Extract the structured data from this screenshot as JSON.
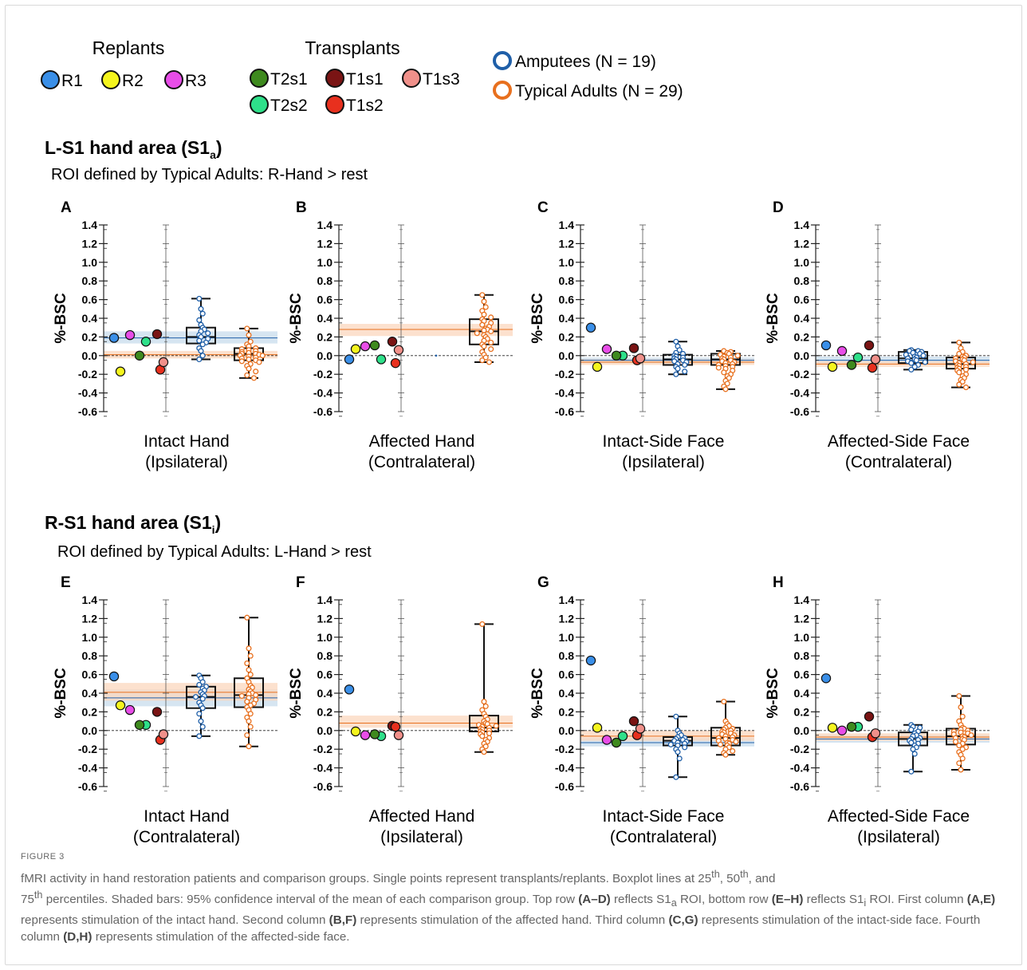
{
  "legend": {
    "replants_title": "Replants",
    "transplants_title": "Transplants",
    "replants": [
      {
        "label": "R1",
        "color": "#3a8fe8"
      },
      {
        "label": "R2",
        "color": "#f5f51e"
      },
      {
        "label": "R3",
        "color": "#e84de8"
      }
    ],
    "transplants": [
      {
        "label": "T2s1",
        "color": "#3e8a1e"
      },
      {
        "label": "T1s1",
        "color": "#7a1414"
      },
      {
        "label": "T1s3",
        "color": "#f0908a"
      },
      {
        "label": "T2s2",
        "color": "#2ee08a"
      },
      {
        "label": "T1s2",
        "color": "#e8301e"
      }
    ],
    "groups": [
      {
        "label": "Amputees (N = 19)",
        "color": "#1f5fa8"
      },
      {
        "label": "Typical Adults (N = 29)",
        "color": "#e8701e"
      }
    ]
  },
  "rows": [
    {
      "title": "L-S1 hand area (S1",
      "sub": "a",
      "close": ")",
      "roi": "ROI defined by Typical Adults: R-Hand > rest"
    },
    {
      "title": "R-S1 hand area (S1",
      "sub": "i",
      "close": ")",
      "roi": "ROI defined by Typical Adults: L-Hand > rest"
    }
  ],
  "ylabel": "%-BSC",
  "yticks": [
    "1.4",
    "1.2",
    "1.0",
    "0.8",
    "0.6",
    "0.4",
    "0.2",
    "0.0",
    "-0.2",
    "-0.4",
    "-0.6"
  ],
  "caption": {
    "label": "FIGURE 3",
    "p1": "fMRI activity in hand restoration patients and comparison groups. Single points represent transplants/replants. Boxplot lines at 25",
    "p2": "th",
    "p3": ", 50",
    "p4": "th",
    "p5": ", and",
    "p6": "75",
    "p7": "th",
    "p8": " percentiles. Shaded bars: 95% confidence interval of the mean of each comparison group. Top row ",
    "b1": "(A–D)",
    "p9": " reflects S1",
    "p10": "a",
    "p11": " ROI, bottom row ",
    "b2": "(E–H)",
    "p12": " reflects S1",
    "p13": "i",
    "p14": " ROI. First column ",
    "b3": "(A,E)",
    "p15": " represents stimulation of the intact hand. Second column ",
    "b4": "(B,F)",
    "p16": " represents stimulation of the affected hand. Third column ",
    "b5": "(C,G)",
    "p17": " represents stimulation of the intact-side face. Fourth column ",
    "b6": "(D,H)",
    "p18": " represents stimulation of the affected-side face."
  },
  "chart_data": [
    {
      "type": "scatter",
      "panel": "A",
      "xlabel": [
        "Intact Hand",
        "(Ipsilateral)"
      ],
      "ylabel": "%-BSC",
      "ylim": [
        -0.6,
        1.4
      ],
      "patients": {
        "R1": 0.19,
        "R2": -0.17,
        "R3": 0.22,
        "T2s1": 0.0,
        "T2s2": 0.15,
        "T1s1": 0.23,
        "T1s2": -0.15,
        "T1s3": -0.07
      },
      "amputees": {
        "mean": 0.19,
        "ci": [
          0.13,
          0.26
        ],
        "box": [
          -0.04,
          0.13,
          0.2,
          0.3,
          0.61
        ],
        "points": [
          0.61,
          0.5,
          0.45,
          0.38,
          0.33,
          0.3,
          0.28,
          0.26,
          0.24,
          0.22,
          0.2,
          0.18,
          0.16,
          0.14,
          0.12,
          0.08,
          0.05,
          0.0,
          -0.04
        ]
      },
      "typical": {
        "mean": 0.01,
        "ci": [
          -0.03,
          0.05
        ],
        "box": [
          -0.24,
          -0.05,
          0.02,
          0.08,
          0.29
        ],
        "points": [
          0.29,
          0.22,
          0.15,
          0.12,
          0.1,
          0.08,
          0.07,
          0.06,
          0.05,
          0.04,
          0.03,
          0.02,
          0.02,
          0.01,
          0.0,
          0.0,
          -0.01,
          -0.02,
          -0.03,
          -0.04,
          -0.05,
          -0.06,
          -0.07,
          -0.09,
          -0.11,
          -0.14,
          -0.17,
          -0.21,
          -0.24
        ]
      }
    },
    {
      "type": "scatter",
      "panel": "B",
      "xlabel": [
        "Affected Hand",
        "(Contralateral)"
      ],
      "ylabel": "%-BSC",
      "ylim": [
        -0.6,
        1.4
      ],
      "patients": {
        "R1": -0.04,
        "R2": 0.07,
        "R3": 0.1,
        "T2s1": 0.11,
        "T2s2": -0.04,
        "T1s1": 0.15,
        "T1s2": -0.08,
        "T1s3": 0.06
      },
      "amputees": {
        "point": 0.0
      },
      "typical": {
        "mean": 0.28,
        "ci": [
          0.21,
          0.34
        ],
        "box": [
          -0.07,
          0.12,
          0.26,
          0.39,
          0.65
        ],
        "points": [
          0.65,
          0.58,
          0.52,
          0.48,
          0.44,
          0.41,
          0.39,
          0.37,
          0.35,
          0.33,
          0.31,
          0.29,
          0.28,
          0.27,
          0.26,
          0.24,
          0.22,
          0.2,
          0.18,
          0.16,
          0.14,
          0.12,
          0.1,
          0.07,
          0.04,
          0.01,
          -0.02,
          -0.05,
          -0.07
        ]
      }
    },
    {
      "type": "scatter",
      "panel": "C",
      "xlabel": [
        "Intact-Side Face",
        "(Ipsilateral)"
      ],
      "ylabel": "%-BSC",
      "ylim": [
        -0.6,
        1.4
      ],
      "patients": {
        "R1": 0.3,
        "R2": -0.12,
        "R3": 0.07,
        "T2s1": 0.0,
        "T2s2": 0.0,
        "T1s1": 0.08,
        "T1s2": -0.05,
        "T1s3": -0.03
      },
      "amputees": {
        "mean": -0.05,
        "ci": [
          -0.08,
          -0.02
        ],
        "box": [
          -0.2,
          -0.1,
          -0.04,
          0.01,
          0.15
        ],
        "points": [
          0.15,
          0.1,
          0.06,
          0.03,
          0.02,
          0.0,
          -0.01,
          -0.02,
          -0.03,
          -0.04,
          -0.05,
          -0.06,
          -0.07,
          -0.09,
          -0.1,
          -0.12,
          -0.14,
          -0.17,
          -0.2
        ]
      },
      "typical": {
        "mean": -0.07,
        "ci": [
          -0.1,
          -0.04
        ],
        "box": [
          -0.36,
          -0.1,
          -0.04,
          0.02,
          0.05
        ],
        "points": [
          0.05,
          0.04,
          0.03,
          0.02,
          0.01,
          0.0,
          -0.01,
          -0.02,
          -0.03,
          -0.04,
          -0.05,
          -0.06,
          -0.07,
          -0.08,
          -0.09,
          -0.1,
          -0.11,
          -0.12,
          -0.13,
          -0.14,
          -0.16,
          -0.18,
          -0.2,
          -0.22,
          -0.24,
          -0.27,
          -0.3,
          -0.33,
          -0.36
        ]
      }
    },
    {
      "type": "scatter",
      "panel": "D",
      "xlabel": [
        "Affected-Side Face",
        "(Contralateral)"
      ],
      "ylabel": "%-BSC",
      "ylim": [
        -0.6,
        1.4
      ],
      "patients": {
        "R1": 0.11,
        "R2": -0.12,
        "R3": 0.05,
        "T2s1": -0.1,
        "T2s2": -0.02,
        "T1s1": 0.11,
        "T1s2": -0.13,
        "T1s3": -0.04
      },
      "amputees": {
        "mean": -0.05,
        "ci": [
          -0.08,
          -0.01
        ],
        "box": [
          -0.15,
          -0.08,
          -0.03,
          0.04,
          0.06
        ],
        "points": [
          0.06,
          0.05,
          0.05,
          0.04,
          0.03,
          0.02,
          0.01,
          0.0,
          -0.01,
          -0.02,
          -0.03,
          -0.04,
          -0.05,
          -0.06,
          -0.07,
          -0.08,
          -0.1,
          -0.12,
          -0.15
        ]
      },
      "typical": {
        "mean": -0.09,
        "ci": [
          -0.12,
          -0.06
        ],
        "box": [
          -0.34,
          -0.14,
          -0.09,
          -0.02,
          0.14
        ],
        "points": [
          0.14,
          0.08,
          0.04,
          0.02,
          0.0,
          -0.01,
          -0.02,
          -0.03,
          -0.04,
          -0.05,
          -0.06,
          -0.07,
          -0.08,
          -0.09,
          -0.1,
          -0.11,
          -0.12,
          -0.13,
          -0.14,
          -0.15,
          -0.16,
          -0.18,
          -0.2,
          -0.22,
          -0.24,
          -0.26,
          -0.28,
          -0.31,
          -0.34
        ]
      }
    },
    {
      "type": "scatter",
      "panel": "E",
      "xlabel": [
        "Intact Hand",
        "(Contralateral)"
      ],
      "ylabel": "%-BSC",
      "ylim": [
        -0.6,
        1.4
      ],
      "patients": {
        "R1": 0.58,
        "R2": 0.27,
        "R3": 0.22,
        "T2s1": 0.06,
        "T2s2": 0.06,
        "T1s1": 0.2,
        "T1s2": -0.1,
        "T1s3": -0.04
      },
      "amputees": {
        "mean": 0.35,
        "ci": [
          0.26,
          0.44
        ],
        "box": [
          -0.06,
          0.24,
          0.36,
          0.47,
          0.59
        ],
        "points": [
          0.59,
          0.56,
          0.52,
          0.49,
          0.47,
          0.45,
          0.43,
          0.41,
          0.39,
          0.37,
          0.36,
          0.34,
          0.3,
          0.27,
          0.24,
          0.18,
          0.1,
          0.04,
          -0.06
        ]
      },
      "typical": {
        "mean": 0.41,
        "ci": [
          0.32,
          0.51
        ],
        "box": [
          -0.17,
          0.25,
          0.38,
          0.56,
          1.21
        ],
        "points": [
          1.21,
          0.88,
          0.8,
          0.72,
          0.65,
          0.6,
          0.56,
          0.52,
          0.48,
          0.46,
          0.44,
          0.42,
          0.4,
          0.39,
          0.38,
          0.37,
          0.35,
          0.33,
          0.31,
          0.29,
          0.27,
          0.25,
          0.22,
          0.18,
          0.14,
          0.1,
          0.04,
          -0.05,
          -0.17
        ]
      }
    },
    {
      "type": "scatter",
      "panel": "F",
      "xlabel": [
        "Affected Hand",
        "(Ipsilateral)"
      ],
      "ylabel": "%-BSC",
      "ylim": [
        -0.6,
        1.4
      ],
      "patients": {
        "R1": 0.44,
        "R2": -0.01,
        "R3": -0.05,
        "T2s1": -0.04,
        "T2s2": -0.06,
        "T1s1": 0.05,
        "T1s2": 0.04,
        "T1s3": -0.05
      },
      "typical": {
        "mean": 0.08,
        "ci": [
          0.03,
          0.16
        ],
        "box": [
          -0.23,
          -0.01,
          0.03,
          0.16,
          1.14
        ],
        "points": [
          1.14,
          0.31,
          0.26,
          0.22,
          0.18,
          0.15,
          0.12,
          0.1,
          0.08,
          0.07,
          0.06,
          0.05,
          0.04,
          0.03,
          0.02,
          0.01,
          0.0,
          -0.01,
          -0.02,
          -0.03,
          -0.04,
          -0.06,
          -0.08,
          -0.1,
          -0.12,
          -0.14,
          -0.17,
          -0.2,
          -0.23
        ]
      }
    },
    {
      "type": "scatter",
      "panel": "G",
      "xlabel": [
        "Intact-Side Face",
        "(Contralateral)"
      ],
      "ylabel": "%-BSC",
      "ylim": [
        -0.6,
        1.4
      ],
      "patients": {
        "R1": 0.75,
        "R2": 0.03,
        "R3": -0.1,
        "T2s1": -0.13,
        "T2s2": -0.06,
        "T1s1": 0.1,
        "T1s2": -0.05,
        "T1s3": 0.02
      },
      "amputees": {
        "mean": -0.13,
        "ci": [
          -0.17,
          -0.08
        ],
        "box": [
          -0.5,
          -0.16,
          -0.11,
          -0.07,
          0.15
        ],
        "points": [
          0.15,
          0.0,
          -0.03,
          -0.05,
          -0.07,
          -0.08,
          -0.09,
          -0.1,
          -0.11,
          -0.12,
          -0.13,
          -0.14,
          -0.15,
          -0.16,
          -0.18,
          -0.2,
          -0.23,
          -0.3,
          -0.5
        ]
      },
      "typical": {
        "mean": -0.06,
        "ci": [
          -0.11,
          0.0
        ],
        "box": [
          -0.26,
          -0.16,
          -0.08,
          0.03,
          0.31
        ],
        "points": [
          0.31,
          0.1,
          0.07,
          0.05,
          0.03,
          0.02,
          0.01,
          0.0,
          -0.01,
          -0.02,
          -0.03,
          -0.04,
          -0.05,
          -0.06,
          -0.07,
          -0.08,
          -0.09,
          -0.1,
          -0.11,
          -0.12,
          -0.13,
          -0.14,
          -0.15,
          -0.16,
          -0.18,
          -0.2,
          -0.22,
          -0.24,
          -0.26
        ]
      }
    },
    {
      "type": "scatter",
      "panel": "H",
      "xlabel": [
        "Affected-Side Face",
        "(Ipsilateral)"
      ],
      "ylabel": "%-BSC",
      "ylim": [
        -0.6,
        1.4
      ],
      "patients": {
        "R1": 0.56,
        "R2": 0.03,
        "R3": 0.0,
        "T2s1": 0.04,
        "T2s2": 0.04,
        "T1s1": 0.15,
        "T1s2": -0.07,
        "T1s3": -0.03
      },
      "amputees": {
        "mean": -0.09,
        "ci": [
          -0.13,
          -0.05
        ],
        "box": [
          -0.44,
          -0.16,
          -0.09,
          -0.02,
          0.06
        ],
        "points": [
          0.06,
          0.04,
          0.03,
          0.01,
          -0.01,
          -0.03,
          -0.05,
          -0.06,
          -0.08,
          -0.09,
          -0.1,
          -0.11,
          -0.13,
          -0.14,
          -0.16,
          -0.18,
          -0.2,
          -0.25,
          -0.44
        ]
      },
      "typical": {
        "mean": -0.07,
        "ci": [
          -0.11,
          -0.03
        ],
        "box": [
          -0.42,
          -0.15,
          -0.06,
          0.02,
          0.37
        ],
        "points": [
          0.37,
          0.25,
          0.15,
          0.1,
          0.06,
          0.03,
          0.02,
          0.01,
          0.0,
          -0.01,
          -0.02,
          -0.03,
          -0.04,
          -0.05,
          -0.06,
          -0.07,
          -0.08,
          -0.09,
          -0.1,
          -0.12,
          -0.14,
          -0.16,
          -0.18,
          -0.2,
          -0.23,
          -0.26,
          -0.3,
          -0.35,
          -0.42
        ]
      }
    }
  ]
}
